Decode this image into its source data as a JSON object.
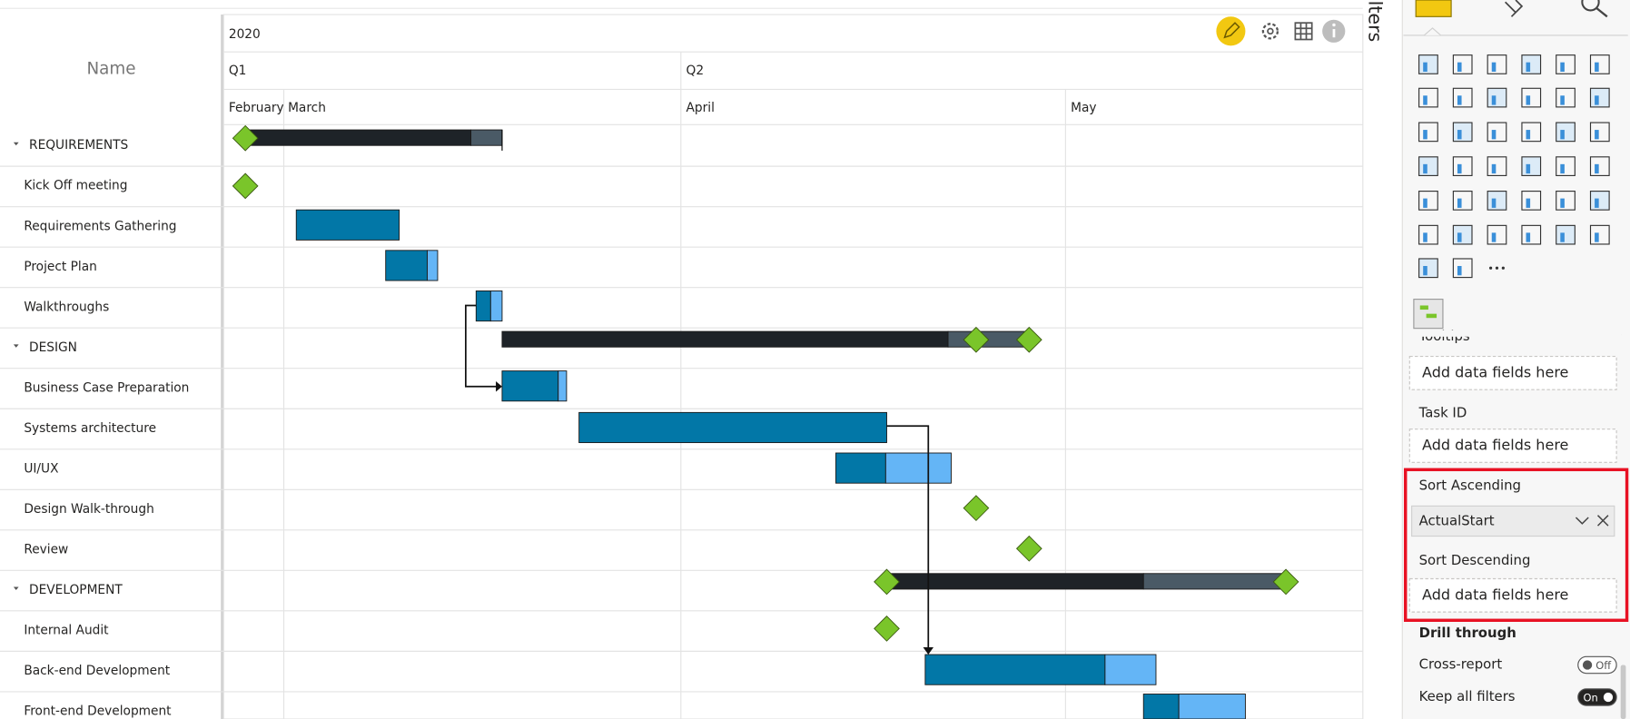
{
  "gantt": {
    "name_header": "Name",
    "year": "2020",
    "quarters": [
      "Q1",
      "Q2"
    ],
    "months": [
      "February",
      "March",
      "April",
      "May"
    ],
    "rows": [
      "REQUIREMENTS",
      "Kick Off meeting",
      "Requirements Gathering",
      "Project Plan",
      "Walkthroughs",
      "DESIGN",
      "Business Case Preparation",
      "Systems architecture",
      "UI/UX",
      "Design Walk-through",
      "Review",
      "DEVELOPMENT",
      "Internal Audit",
      "Back-end Development",
      "Front-end Development"
    ]
  },
  "pane": {
    "side_label": "ilters",
    "cut_label": "Tooltips",
    "placeholder": "Add data fields here",
    "task_id": "Task ID",
    "sort_ascending": "Sort Ascending",
    "sort_field": "ActualStart",
    "sort_descending": "Sort Descending",
    "drill_through": "Drill through",
    "toggles": [
      {
        "label": "Cross-report",
        "state": "Off"
      },
      {
        "label": "Keep all filters",
        "state": "On"
      }
    ]
  }
}
